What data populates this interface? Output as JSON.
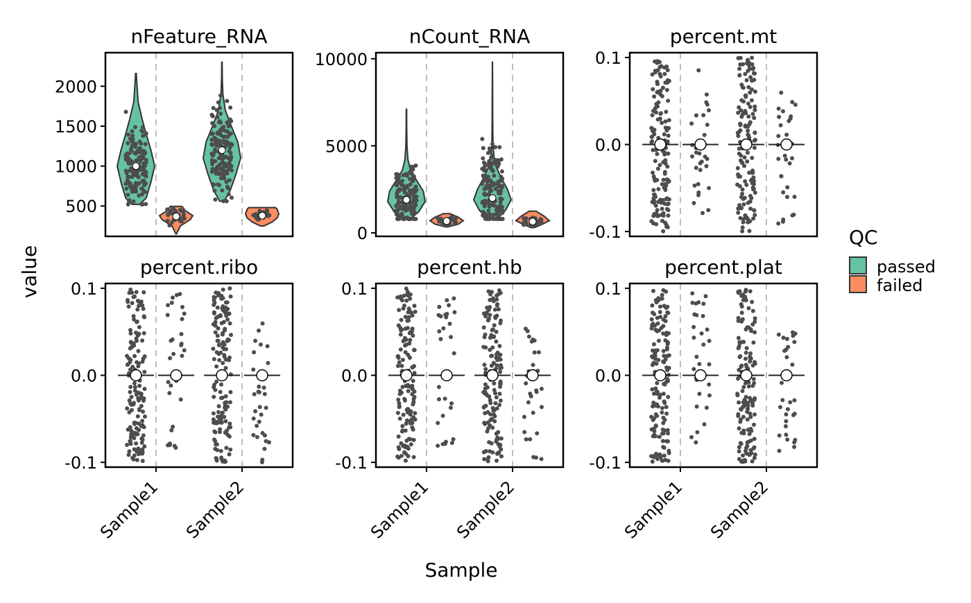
{
  "chart_data": {
    "type": "violin",
    "ylabel": "value",
    "xlabel": "Sample",
    "categories": [
      "Sample1",
      "Sample2"
    ],
    "legend": {
      "title": "QC",
      "placement": "right",
      "items": [
        {
          "label": "passed",
          "color": "#66C2A5"
        },
        {
          "label": "failed",
          "color": "#FC8D62"
        }
      ]
    },
    "point_color": "#4D4D4D",
    "panels": [
      {
        "title": "nFeature_RNA",
        "ylim": [
          120,
          2420
        ],
        "yticks": [
          500,
          1000,
          1500,
          2000
        ],
        "ytick_labels": [
          "500",
          "1000",
          "1500",
          "2000"
        ],
        "groups": [
          {
            "sample": "Sample1",
            "qc": "passed",
            "n": 150,
            "min": 520,
            "max": 2160,
            "median": 1000,
            "density": [
              [
                520,
                0.2
              ],
              [
                600,
                0.55
              ],
              [
                800,
                0.8
              ],
              [
                1000,
                1
              ],
              [
                1200,
                0.8
              ],
              [
                1400,
                0.55
              ],
              [
                1600,
                0.32
              ],
              [
                1800,
                0.12
              ],
              [
                2000,
                0.06
              ],
              [
                2160,
                0.02
              ]
            ]
          },
          {
            "sample": "Sample1",
            "qc": "failed",
            "n": 30,
            "min": 150,
            "max": 495,
            "median": 370,
            "density": [
              [
                150,
                0.02
              ],
              [
                250,
                0.25
              ],
              [
                330,
                0.85
              ],
              [
                380,
                1
              ],
              [
                440,
                0.55
              ],
              [
                495,
                0.35
              ]
            ]
          },
          {
            "sample": "Sample2",
            "qc": "passed",
            "n": 150,
            "min": 560,
            "max": 2300,
            "median": 1200,
            "density": [
              [
                560,
                0.12
              ],
              [
                700,
                0.45
              ],
              [
                900,
                0.75
              ],
              [
                1100,
                1
              ],
              [
                1300,
                0.85
              ],
              [
                1500,
                0.5
              ],
              [
                1700,
                0.18
              ],
              [
                1900,
                0.05
              ],
              [
                2100,
                0.02
              ],
              [
                2300,
                0.01
              ]
            ]
          },
          {
            "sample": "Sample2",
            "qc": "failed",
            "n": 30,
            "min": 250,
            "max": 480,
            "median": 380,
            "density": [
              [
                250,
                0.1
              ],
              [
                300,
                0.6
              ],
              [
                350,
                0.9
              ],
              [
                400,
                1
              ],
              [
                460,
                0.9
              ],
              [
                480,
                0.8
              ]
            ]
          }
        ]
      },
      {
        "title": "nCount_RNA",
        "ylim": [
          -200,
          10350
        ],
        "yticks": [
          0,
          5000,
          10000
        ],
        "ytick_labels": [
          "0",
          "5000",
          "10000"
        ],
        "groups": [
          {
            "sample": "Sample1",
            "qc": "passed",
            "n": 150,
            "min": 800,
            "max": 7100,
            "median": 1900,
            "density": [
              [
                800,
                0.2
              ],
              [
                1200,
                0.65
              ],
              [
                1800,
                1
              ],
              [
                2400,
                0.9
              ],
              [
                3000,
                0.55
              ],
              [
                3600,
                0.22
              ],
              [
                4200,
                0.08
              ],
              [
                5000,
                0.03
              ],
              [
                6000,
                0.015
              ],
              [
                7100,
                0.01
              ]
            ]
          },
          {
            "sample": "Sample1",
            "qc": "failed",
            "n": 30,
            "min": 350,
            "max": 1100,
            "median": 680,
            "density": [
              [
                350,
                0.1
              ],
              [
                500,
                0.7
              ],
              [
                700,
                1
              ],
              [
                900,
                0.7
              ],
              [
                1100,
                0.2
              ]
            ]
          },
          {
            "sample": "Sample2",
            "qc": "passed",
            "n": 150,
            "min": 800,
            "max": 9800,
            "median": 2000,
            "density": [
              [
                800,
                0.25
              ],
              [
                1300,
                0.7
              ],
              [
                1900,
                1
              ],
              [
                2500,
                0.8
              ],
              [
                3200,
                0.45
              ],
              [
                4000,
                0.12
              ],
              [
                5000,
                0.03
              ],
              [
                6500,
                0.015
              ],
              [
                8000,
                0.01
              ],
              [
                9800,
                0.005
              ]
            ]
          },
          {
            "sample": "Sample2",
            "qc": "failed",
            "n": 30,
            "min": 300,
            "max": 1250,
            "median": 650,
            "density": [
              [
                300,
                0.1
              ],
              [
                500,
                0.6
              ],
              [
                700,
                1
              ],
              [
                950,
                0.7
              ],
              [
                1250,
                0.2
              ]
            ]
          }
        ]
      },
      {
        "title": "percent.mt",
        "ylim": [
          -0.1055,
          0.1055
        ],
        "yticks": [
          -0.1,
          0,
          0.1
        ],
        "ytick_labels": [
          "-0.1",
          "0.0",
          "0.1"
        ],
        "groups": [
          {
            "sample": "Sample1",
            "qc": "passed",
            "n": 150,
            "min": -0.1,
            "max": 0.1,
            "median": 0
          },
          {
            "sample": "Sample1",
            "qc": "failed",
            "n": 30,
            "min": -0.085,
            "max": 0.095,
            "median": 0
          },
          {
            "sample": "Sample2",
            "qc": "passed",
            "n": 150,
            "min": -0.1,
            "max": 0.1,
            "median": 0
          },
          {
            "sample": "Sample2",
            "qc": "failed",
            "n": 30,
            "min": -0.1,
            "max": 0.06,
            "median": 0
          }
        ]
      },
      {
        "title": "percent.ribo",
        "ylim": [
          -0.1055,
          0.1055
        ],
        "yticks": [
          -0.1,
          0,
          0.1
        ],
        "ytick_labels": [
          "-0.1",
          "0.0",
          "0.1"
        ],
        "groups": [
          {
            "sample": "Sample1",
            "qc": "passed",
            "n": 150,
            "min": -0.1,
            "max": 0.1,
            "median": 0
          },
          {
            "sample": "Sample1",
            "qc": "failed",
            "n": 30,
            "min": -0.085,
            "max": 0.095,
            "median": 0
          },
          {
            "sample": "Sample2",
            "qc": "passed",
            "n": 150,
            "min": -0.1,
            "max": 0.1,
            "median": 0
          },
          {
            "sample": "Sample2",
            "qc": "failed",
            "n": 30,
            "min": -0.1,
            "max": 0.06,
            "median": 0
          }
        ]
      },
      {
        "title": "percent.hb",
        "ylim": [
          -0.1055,
          0.1055
        ],
        "yticks": [
          -0.1,
          0,
          0.1
        ],
        "ytick_labels": [
          "-0.1",
          "0.0",
          "0.1"
        ],
        "groups": [
          {
            "sample": "Sample1",
            "qc": "passed",
            "n": 150,
            "min": -0.1,
            "max": 0.1,
            "median": 0
          },
          {
            "sample": "Sample1",
            "qc": "failed",
            "n": 30,
            "min": -0.085,
            "max": 0.095,
            "median": 0
          },
          {
            "sample": "Sample2",
            "qc": "passed",
            "n": 150,
            "min": -0.1,
            "max": 0.1,
            "median": 0
          },
          {
            "sample": "Sample2",
            "qc": "failed",
            "n": 30,
            "min": -0.1,
            "max": 0.06,
            "median": 0
          }
        ]
      },
      {
        "title": "percent.plat",
        "ylim": [
          -0.1055,
          0.1055
        ],
        "yticks": [
          -0.1,
          0,
          0.1
        ],
        "ytick_labels": [
          "-0.1",
          "0.0",
          "0.1"
        ],
        "groups": [
          {
            "sample": "Sample1",
            "qc": "passed",
            "n": 150,
            "min": -0.1,
            "max": 0.1,
            "median": 0
          },
          {
            "sample": "Sample1",
            "qc": "failed",
            "n": 30,
            "min": -0.085,
            "max": 0.095,
            "median": 0
          },
          {
            "sample": "Sample2",
            "qc": "passed",
            "n": 150,
            "min": -0.1,
            "max": 0.1,
            "median": 0
          },
          {
            "sample": "Sample2",
            "qc": "failed",
            "n": 30,
            "min": -0.1,
            "max": 0.06,
            "median": 0
          }
        ]
      }
    ]
  }
}
